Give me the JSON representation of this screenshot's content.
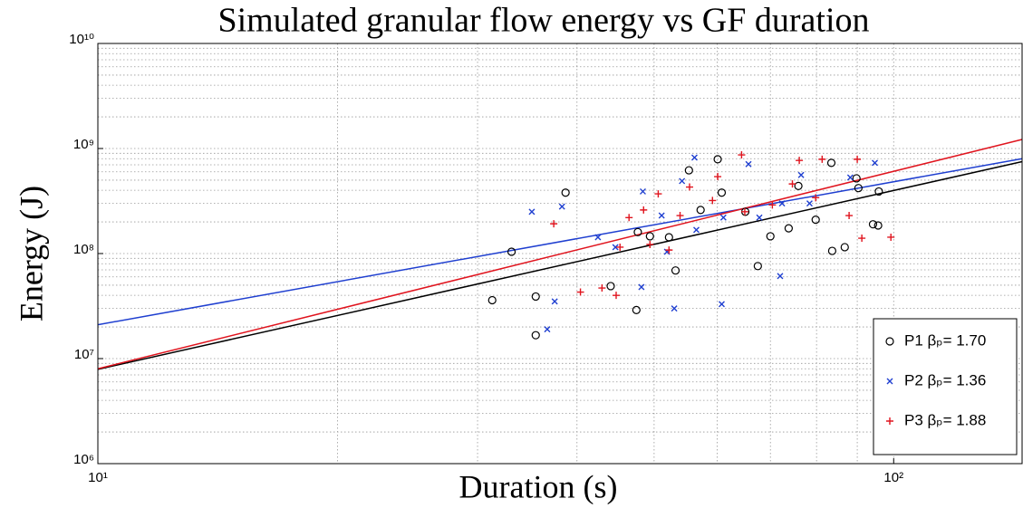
{
  "chart_data": {
    "type": "scatter",
    "title": "Simulated granular flow energy vs GF duration",
    "xlabel": "Duration (s)",
    "ylabel": "Energy (J)",
    "xscale": "log",
    "yscale": "log",
    "xlim": [
      10,
      145
    ],
    "ylim": [
      1000000,
      10000000000
    ],
    "xticks": [
      {
        "value": 10,
        "label": "10¹"
      },
      {
        "value": 100,
        "label": "10²"
      }
    ],
    "yticks": [
      {
        "value": 1000000,
        "label": "10⁶"
      },
      {
        "value": 10000000,
        "label": "10⁷"
      },
      {
        "value": 100000000,
        "label": "10⁸"
      },
      {
        "value": 1000000000,
        "label": "10⁹"
      },
      {
        "value": 10000000000,
        "label": "10¹⁰"
      }
    ],
    "grid": true,
    "legend_loc": "lower right",
    "series": [
      {
        "name": "P1 βₚ= 1.70",
        "color": "#000000",
        "marker": "circle",
        "x": [
          31.3,
          33.1,
          35.5,
          35.5,
          38.7,
          44.1,
          47.5,
          47.7,
          52.2,
          53.2,
          55.3,
          57.2,
          60.1,
          60.8,
          65.1,
          67.5,
          70.0,
          73.8,
          75.9,
          79.8,
          83.5,
          83.7,
          86.8,
          89.8,
          90.3,
          94.2,
          95.6,
          95.8,
          49.4
        ],
        "y": [
          36000000,
          104000000,
          16700000,
          39000000,
          380000000,
          49000000,
          29000000,
          160000000,
          143000000,
          69000000,
          620000000,
          260000000,
          790000000,
          380000000,
          250000000,
          76000000,
          146000000,
          174000000,
          440000000,
          210000000,
          730000000,
          106000000,
          115000000,
          520000000,
          420000000,
          190000000,
          185000000,
          390000000,
          146000000
        ],
        "fit": {
          "x": [
            10,
            145
          ],
          "y": [
            7900000,
            750000000
          ]
        }
      },
      {
        "name": "P2 βₚ= 1.36",
        "color": "#1f3fd0",
        "marker": "x",
        "x": [
          35.1,
          36.7,
          37.5,
          38.3,
          42.5,
          44.7,
          48.2,
          48.4,
          51.1,
          53.0,
          54.2,
          56.2,
          56.5,
          60.8,
          61.1,
          65.7,
          67.8,
          72.0,
          72.4,
          76.5,
          78.4,
          88.2,
          94.7,
          51.9
        ],
        "y": [
          250000000,
          19000000,
          35000000,
          280000000,
          143000000,
          115000000,
          48000000,
          390000000,
          230000000,
          30000000,
          490000000,
          820000000,
          168000000,
          33000000,
          220000000,
          710000000,
          220000000,
          61000000,
          300000000,
          560000000,
          300000000,
          530000000,
          730000000,
          104000000
        ],
        "fit": {
          "x": [
            10,
            145
          ],
          "y": [
            21000000,
            800000000
          ]
        }
      },
      {
        "name": "P3 βₚ= 1.88",
        "color": "#e0141e",
        "marker": "plus",
        "x": [
          37.4,
          40.4,
          43.0,
          44.8,
          45.3,
          46.5,
          48.5,
          49.4,
          50.6,
          52.2,
          53.9,
          55.4,
          59.2,
          60.1,
          65.0,
          70.4,
          74.6,
          76.1,
          79.8,
          81.3,
          87.9,
          90.0,
          91.2,
          99.2,
          64.4
        ],
        "y": [
          192000000,
          43000000,
          47000000,
          40000000,
          115000000,
          220000000,
          260000000,
          122000000,
          370000000,
          108000000,
          230000000,
          430000000,
          320000000,
          540000000,
          250000000,
          290000000,
          460000000,
          770000000,
          340000000,
          790000000,
          230000000,
          790000000,
          140000000,
          143000000,
          870000000
        ],
        "fit": {
          "x": [
            10,
            145
          ],
          "y": [
            8000000,
            1220000000
          ]
        }
      }
    ]
  }
}
